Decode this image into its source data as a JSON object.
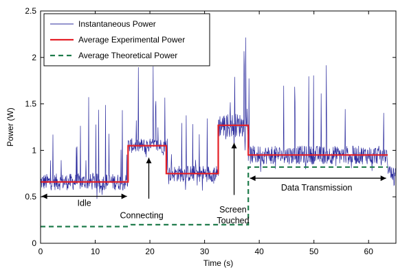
{
  "chart_data": {
    "type": "line",
    "xlabel": "Time (s)",
    "ylabel": "Power (W)",
    "xlim": [
      0,
      65
    ],
    "ylim": [
      0,
      2.5
    ],
    "xticks": [
      0,
      10,
      20,
      30,
      40,
      50,
      60
    ],
    "yticks": [
      0,
      0.5,
      1,
      1.5,
      2,
      2.5
    ],
    "ytick_labels": [
      "0",
      "0.5",
      "1",
      "1.5",
      "2",
      "2.5"
    ],
    "grid": false,
    "legend_position": "top-left",
    "series": [
      {
        "name": "Instantaneous Power",
        "color": "#2a2a9c",
        "style": "noisy-line",
        "segments": [
          {
            "x_start": 0,
            "x_end": 16,
            "baseline": 0.66,
            "spread": 0.09,
            "spike_max": 1.58
          },
          {
            "x_start": 16,
            "x_end": 23,
            "baseline": 1.05,
            "spread": 0.08,
            "spike_max": 1.93
          },
          {
            "x_start": 23,
            "x_end": 32.5,
            "baseline": 0.75,
            "spread": 0.09,
            "spike_max": 1.45
          },
          {
            "x_start": 32.5,
            "x_end": 38,
            "baseline": 1.27,
            "spread": 0.13,
            "spike_max": 2.28
          },
          {
            "x_start": 38,
            "x_end": 63.5,
            "baseline": 0.95,
            "spread": 0.1,
            "spike_max": 1.93
          },
          {
            "x_start": 63.5,
            "x_end": 65,
            "baseline": 0.75,
            "spread": 0.08,
            "spike_max": 1.0
          }
        ]
      },
      {
        "name": "Average Experimental Power",
        "color": "#e41f26",
        "x": [
          0,
          16,
          16,
          23,
          23,
          32.5,
          32.5,
          38,
          38,
          63.5
        ],
        "y": [
          0.66,
          0.66,
          1.05,
          1.05,
          0.75,
          0.75,
          1.27,
          1.27,
          0.95,
          0.95
        ]
      },
      {
        "name": "Average Theoretical Power",
        "color": "#1e7b4a",
        "dashed": true,
        "x": [
          0,
          16,
          16.5,
          38,
          38,
          63.5
        ],
        "y": [
          0.18,
          0.18,
          0.2,
          0.2,
          0.82,
          0.82
        ]
      }
    ],
    "annotations": [
      {
        "id": "idle",
        "text": "Idle",
        "x": 8,
        "y": 0.45
      },
      {
        "id": "connecting",
        "text": "Connecting",
        "x": 18.5,
        "y": 0.3
      },
      {
        "id": "screen",
        "text": [
          "Screen",
          "Touched"
        ],
        "x": 35.2,
        "y": 0.3
      },
      {
        "id": "data",
        "text": "Data Transmission",
        "x": 50.5,
        "y": 0.58
      }
    ]
  }
}
